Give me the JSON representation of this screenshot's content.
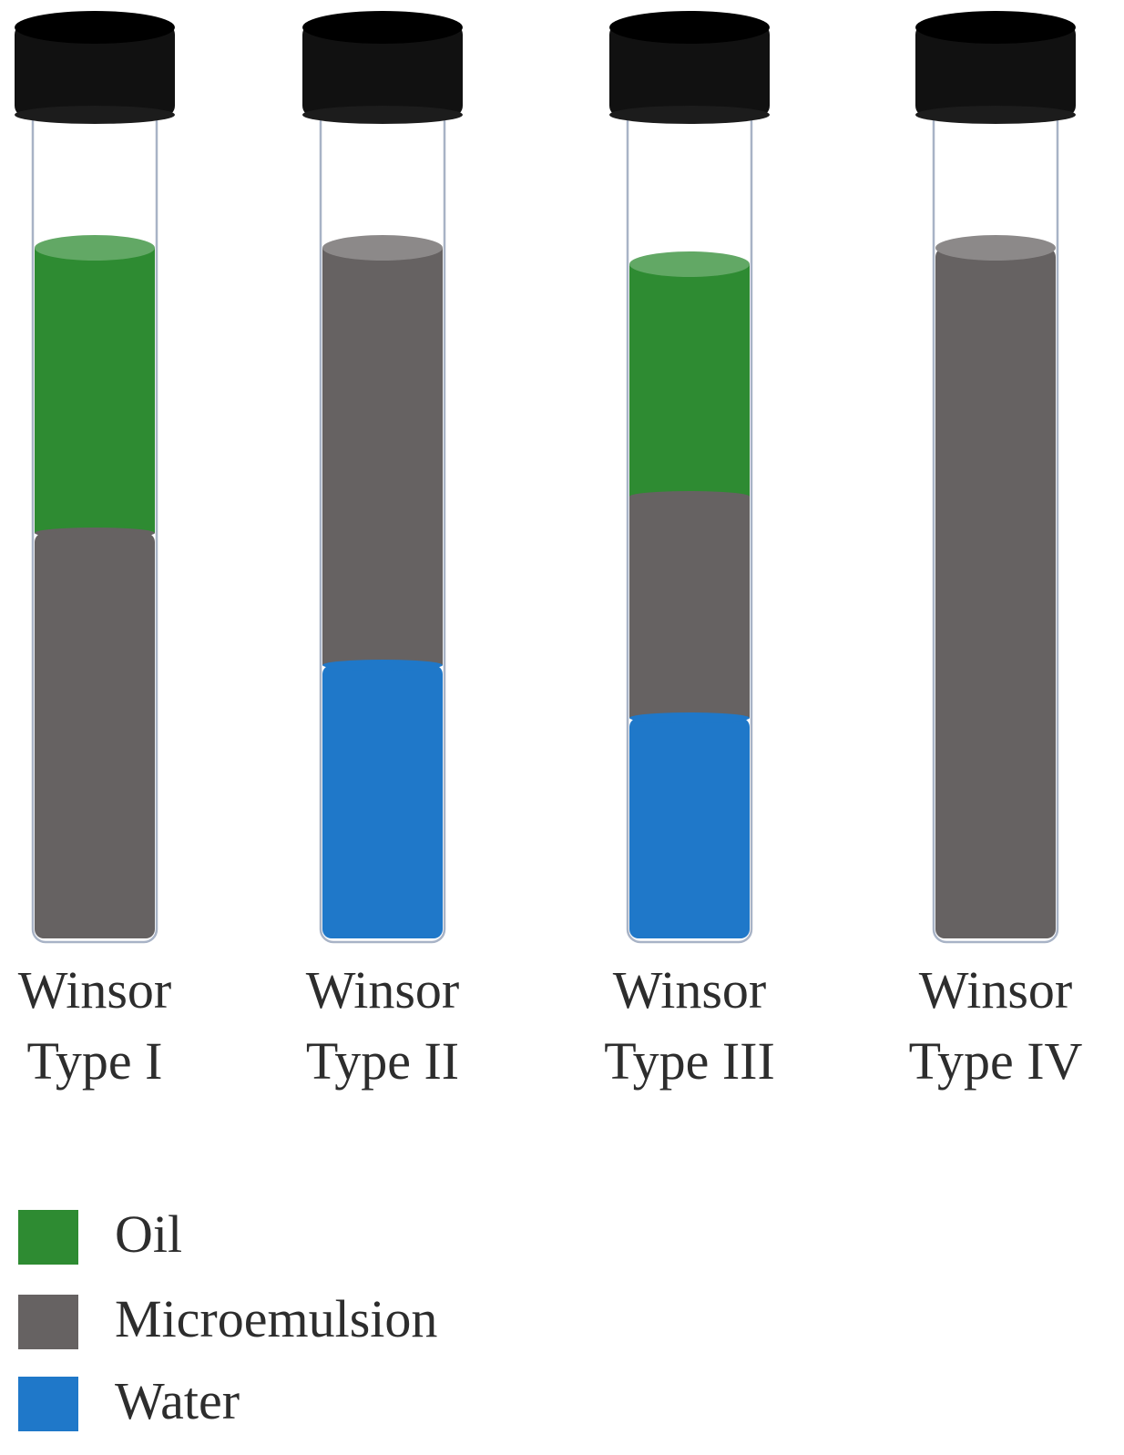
{
  "colors": {
    "oil": "#2e8b32",
    "microemulsion": "#666262",
    "water": "#1f78c9",
    "cap": "#111111",
    "glass": "#a8b3c6"
  },
  "tubes": [
    {
      "label_line1": "Winsor",
      "label_line2": "Type I",
      "layers_top_to_bottom": [
        "oil",
        "microemulsion"
      ]
    },
    {
      "label_line1": "Winsor",
      "label_line2": "Type II",
      "layers_top_to_bottom": [
        "microemulsion",
        "water"
      ]
    },
    {
      "label_line1": "Winsor",
      "label_line2": "Type III",
      "layers_top_to_bottom": [
        "oil",
        "microemulsion",
        "water"
      ]
    },
    {
      "label_line1": "Winsor",
      "label_line2": "Type IV",
      "layers_top_to_bottom": [
        "microemulsion"
      ]
    }
  ],
  "legend": [
    {
      "key": "oil",
      "label": "Oil"
    },
    {
      "key": "microemulsion",
      "label": "Microemulsion"
    },
    {
      "key": "water",
      "label": "Water"
    }
  ]
}
